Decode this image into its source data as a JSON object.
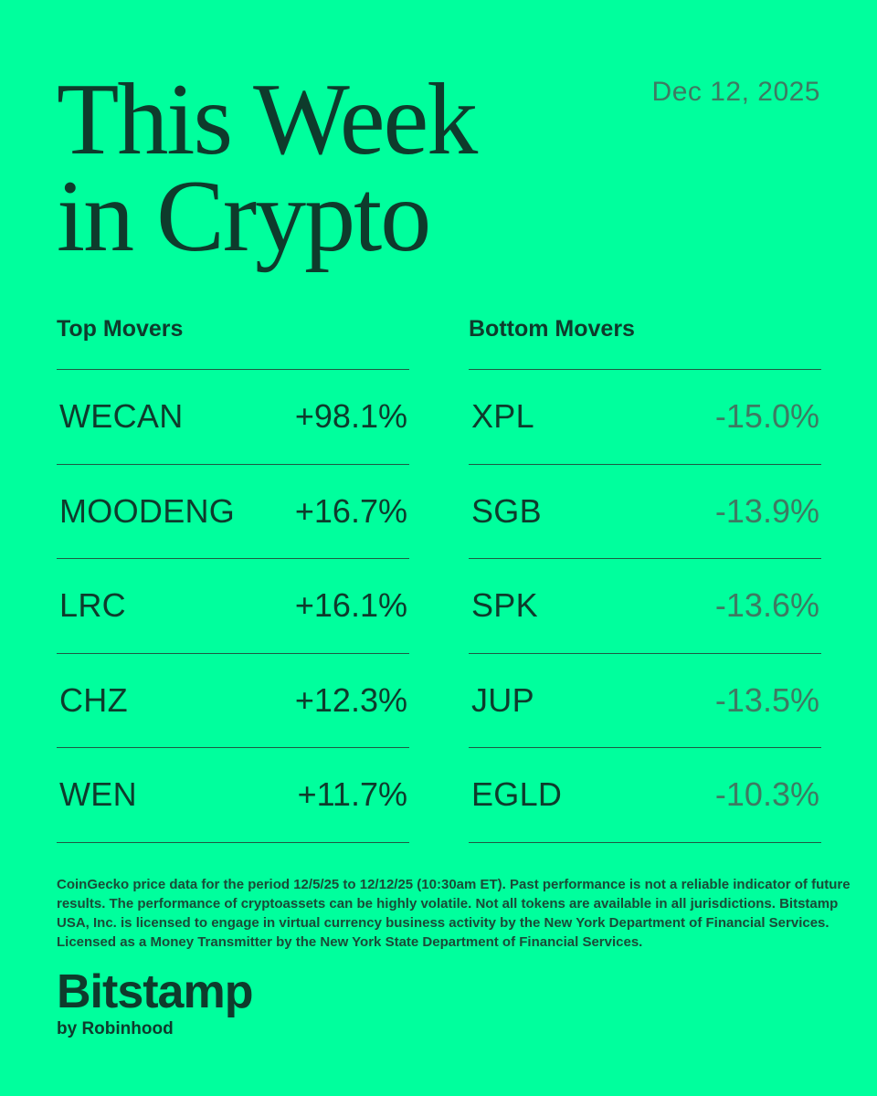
{
  "header": {
    "title_line1": "This Week",
    "title_line2": "in Crypto",
    "date": "Dec 12, 2025"
  },
  "top_movers": {
    "heading": "Top Movers",
    "rows": [
      {
        "ticker": "WECAN",
        "change": "+98.1%"
      },
      {
        "ticker": "MOODENG",
        "change": "+16.7%"
      },
      {
        "ticker": "LRC",
        "change": "+16.1%"
      },
      {
        "ticker": "CHZ",
        "change": "+12.3%"
      },
      {
        "ticker": "WEN",
        "change": "+11.7%"
      }
    ]
  },
  "bottom_movers": {
    "heading": "Bottom Movers",
    "rows": [
      {
        "ticker": "XPL",
        "change": "-15.0%"
      },
      {
        "ticker": "SGB",
        "change": "-13.9%"
      },
      {
        "ticker": "SPK",
        "change": "-13.6%"
      },
      {
        "ticker": "JUP",
        "change": "-13.5%"
      },
      {
        "ticker": "EGLD",
        "change": "-10.3%"
      }
    ]
  },
  "footer": {
    "disclaimer": "CoinGecko price data for the period 12/5/25 to 12/12/25 (10:30am ET). Past performance is not a reliable indicator of future results. The performance of cryptoassets can be highly volatile. Not all tokens are available in all jurisdictions. Bitstamp USA, Inc. is licensed to engage in virtual currency business activity by the New York Department of Financial Services. Licensed as a Money Transmitter by the New York State Department of Financial Services.",
    "brand": "Bitstamp",
    "brand_sub": "by Robinhood"
  },
  "colors": {
    "background": "#00FF9D",
    "text": "#0E3B2C",
    "muted": "#3E7A62"
  }
}
